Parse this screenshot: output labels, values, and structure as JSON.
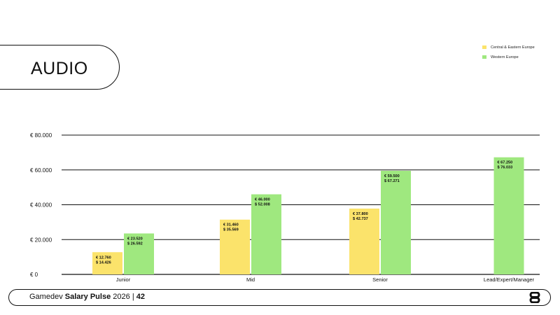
{
  "slide": {
    "title": "AUDIO",
    "footer": {
      "prefix": "Gamedev",
      "bold": "Salary Pulse",
      "year": "2026",
      "separator": "|",
      "page": "42"
    },
    "logo_icon": "studio-logo-8-icon"
  },
  "chart_data": {
    "type": "bar",
    "categories": [
      "Junior",
      "Mid",
      "Senior",
      "Lead/Expert/Manager"
    ],
    "y_ticks": [
      "€ 80.000",
      "€ 60.000",
      "€ 40.000",
      "€ 20.000",
      "€ 0"
    ],
    "y_tick_values": [
      80000,
      60000,
      40000,
      20000,
      0
    ],
    "ylim": [
      0,
      80000
    ],
    "grid": true,
    "legend_position": "top-right",
    "series": [
      {
        "name": "Central & Eastern Europe",
        "color": "#FBE36B",
        "values": [
          12760,
          31460,
          37800,
          null
        ],
        "labels": [
          [
            "€ 12.760",
            "$ 14.426"
          ],
          [
            "€ 31.460",
            "$ 35.569"
          ],
          [
            "€ 37.800",
            "$ 42.737"
          ],
          null
        ]
      },
      {
        "name": "Western Europe",
        "color": "#9FE87F",
        "values": [
          23520,
          46000,
          59500,
          67250
        ],
        "labels": [
          [
            "€ 23.520",
            "$ 26.592"
          ],
          [
            "€ 46.000",
            "$ 52.008"
          ],
          [
            "€ 59.500",
            "$ 67.271"
          ],
          [
            "€ 67.250",
            "$ 76.033"
          ]
        ]
      }
    ]
  }
}
